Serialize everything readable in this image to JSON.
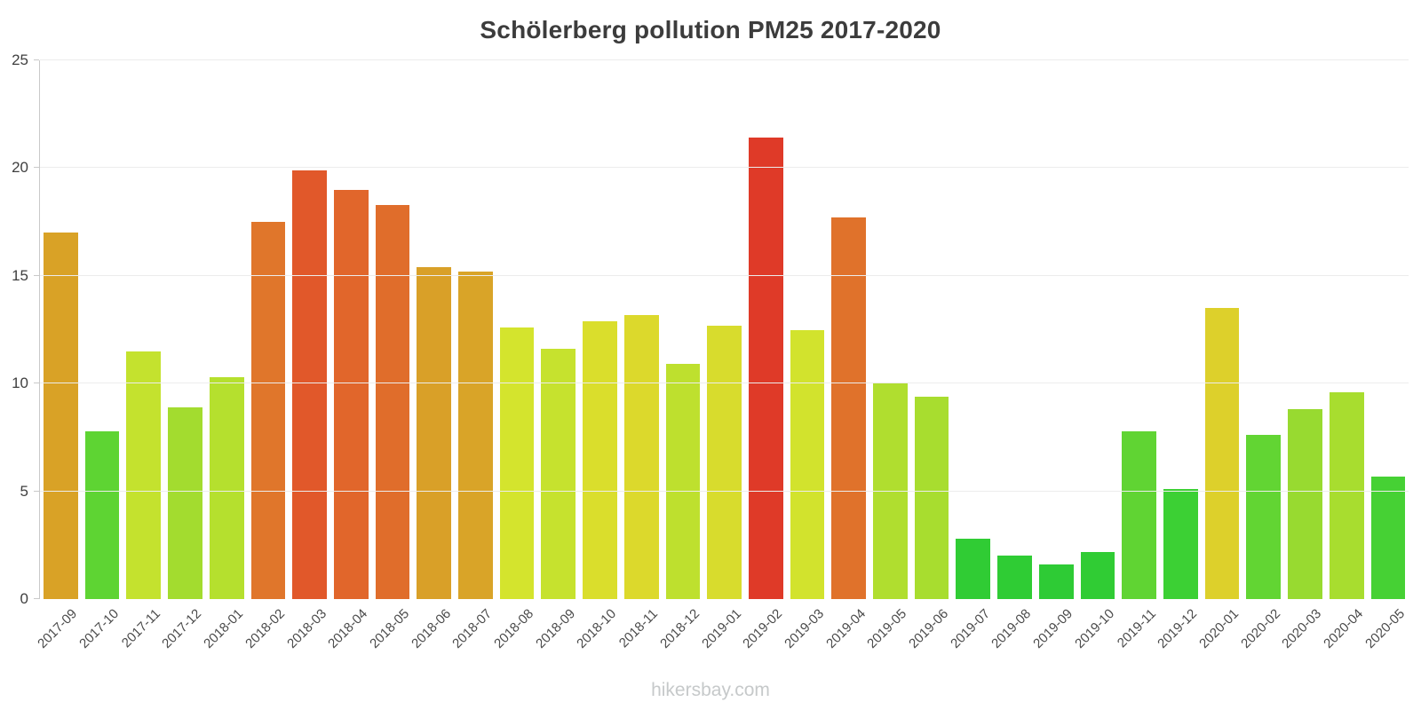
{
  "title": "Schölerberg pollution PM25 2017-2020",
  "watermark": "hikersbay.com",
  "chart_data": {
    "type": "bar",
    "title": "Schölerberg pollution PM25 2017-2020",
    "xlabel": "",
    "ylabel": "",
    "ylim": [
      0,
      25
    ],
    "yticks": [
      0,
      5,
      10,
      15,
      20,
      25
    ],
    "grid": true,
    "legend": "none",
    "categories": [
      "2017-09",
      "2017-10",
      "2017-11",
      "2017-12",
      "2018-01",
      "2018-02",
      "2018-03",
      "2018-04",
      "2018-05",
      "2018-06",
      "2018-07",
      "2018-08",
      "2018-09",
      "2018-10",
      "2018-11",
      "2018-12",
      "2019-01",
      "2019-02",
      "2019-03",
      "2019-04",
      "2019-05",
      "2019-06",
      "2019-07",
      "2019-08",
      "2019-09",
      "2019-10",
      "2019-11",
      "2019-12",
      "2020-01",
      "2020-02",
      "2020-03",
      "2020-04",
      "2020-05"
    ],
    "values": [
      17.0,
      7.8,
      11.5,
      8.9,
      10.3,
      17.5,
      19.9,
      19.0,
      18.3,
      15.4,
      15.2,
      12.6,
      11.6,
      12.9,
      13.2,
      10.9,
      12.7,
      21.4,
      12.5,
      17.7,
      10.0,
      9.4,
      2.8,
      2.0,
      1.6,
      2.2,
      7.8,
      5.1,
      13.5,
      7.6,
      8.8,
      9.6,
      5.7
    ],
    "colors": [
      "#d9a226",
      "#5ed433",
      "#c4e22e",
      "#a3dc2f",
      "#b5e02e",
      "#e0762b",
      "#e1582a",
      "#e1662b",
      "#e06d2b",
      "#d9a028",
      "#d9a428",
      "#d4e42d",
      "#c6e22e",
      "#dade2c",
      "#dcd92c",
      "#bee02e",
      "#d8dc2d",
      "#df3a28",
      "#d2e32d",
      "#e0722b",
      "#b0de2f",
      "#a8dd2f",
      "#30cc34",
      "#2fcc34",
      "#2ecb35",
      "#30cc34",
      "#60d433",
      "#3cd034",
      "#ddd02b",
      "#62d533",
      "#98da30",
      "#a8dd2f",
      "#46d134"
    ]
  }
}
